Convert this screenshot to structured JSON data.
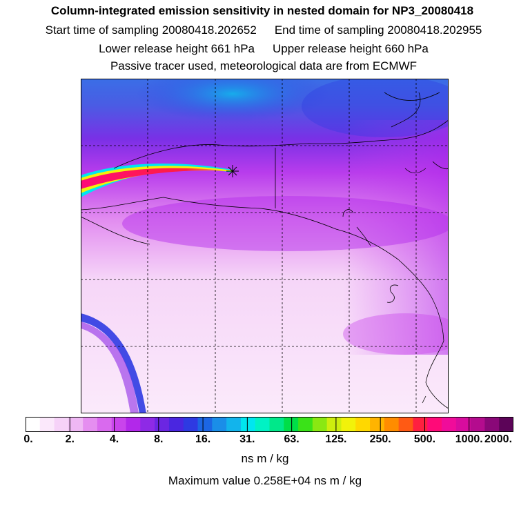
{
  "header": {
    "title": "Column-integrated emission sensitivity in nested domain for NP3_20080418",
    "start_time": "Start time of sampling 20080418.202652",
    "end_time": "End time of sampling 20080418.202955",
    "lower_release": "Lower release height  661 hPa",
    "upper_release": "Upper release height  660 hPa",
    "tracer_note": "Passive tracer used, meteorological data are from ECMWF"
  },
  "legend": {
    "tick_labels": [
      "0.",
      "2.",
      "4.",
      "8.",
      "16.",
      "31.",
      "63.",
      "125.",
      "250.",
      "500.",
      "1000.",
      "2000."
    ],
    "unit": "ns m / kg",
    "max_value": "Maximum value  0.258E+04 ns m / kg",
    "colors": [
      "#ffffff",
      "#fbe8fb",
      "#f6d2f8",
      "#efb8f4",
      "#e58ef0",
      "#d96aee",
      "#c944ec",
      "#b228ea",
      "#8e2ae6",
      "#6b26e2",
      "#4a26e0",
      "#2e3ae2",
      "#1c66e4",
      "#1a8ee8",
      "#12b4ec",
      "#00e6f0",
      "#00f2c4",
      "#00e88a",
      "#00de48",
      "#3ae218",
      "#8ae812",
      "#cdee0e",
      "#f2f20a",
      "#ffd800",
      "#ffb400",
      "#ff8c00",
      "#ff5a14",
      "#ff2040",
      "#ff0a78",
      "#f00c9a",
      "#d80c9e",
      "#b40c8e",
      "#8a0878",
      "#5c0458"
    ]
  },
  "map": {
    "receptor_marker": "star",
    "colors": {
      "coast": "#000000",
      "grid": "#000000",
      "low": "#f6d2f8",
      "mid": "#c944ec",
      "high_north": "#3a6ee6",
      "plume": "#ff2040"
    }
  }
}
